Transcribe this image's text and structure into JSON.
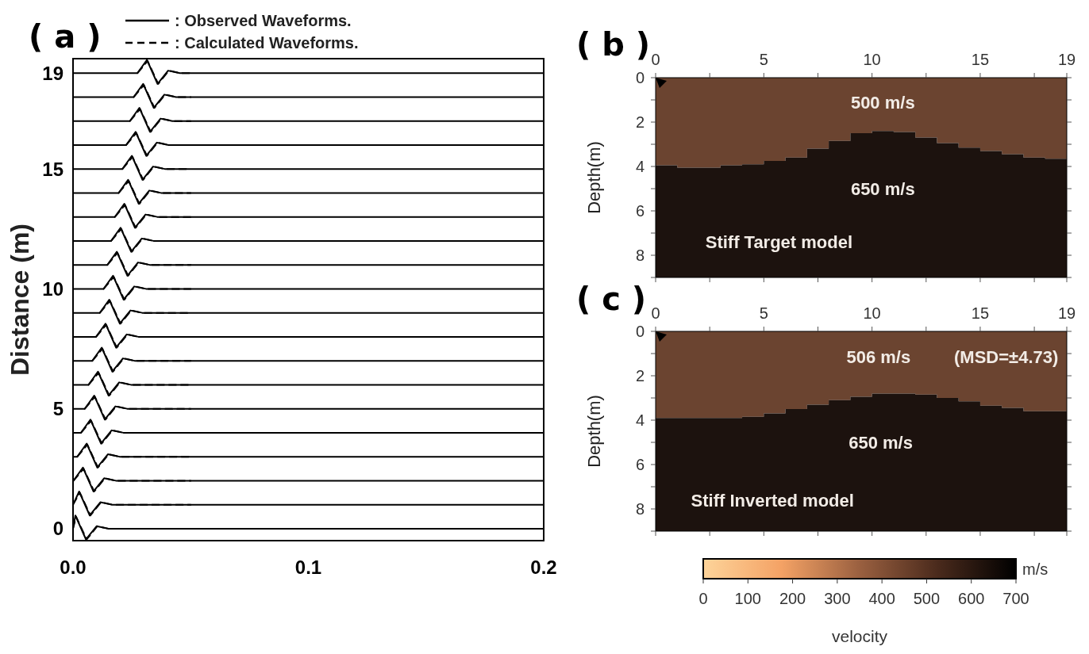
{
  "chart_data": [
    {
      "type": "line",
      "title": "( a )",
      "ylabel": "Distance (m)",
      "xlim": [
        0,
        0.2
      ],
      "xticks": [
        {
          "value": 0,
          "label": "0.0"
        },
        0.1,
        0.2
      ],
      "ylim": [
        -0.5,
        19.6
      ],
      "yticks": [
        0,
        5,
        10,
        15,
        19
      ],
      "legend": "top",
      "series": [
        {
          "name": ": Observed Waveforms.",
          "color": "#000000",
          "line_style": "solid",
          "x": [
            0,
            0.001,
            0.0055,
            0.01,
            0.015,
            0.07,
            0.2
          ],
          "values": [
            0,
            0.55,
            -0.45,
            0.1,
            0,
            0,
            0
          ]
        },
        {
          "name": ": Calculated Waveforms.",
          "color": "#000000",
          "line_style": "dashed",
          "x": [
            0,
            0.0013,
            0.0058,
            0.0103,
            0.015,
            0.05
          ],
          "values": [
            0,
            0.5,
            -0.45,
            0.1,
            0,
            0
          ]
        },
        {
          "color": "#000000",
          "line_style": "solid",
          "x": [
            0,
            0.0026,
            0.0071,
            0.0116,
            0.0166,
            0.07,
            0.2
          ],
          "values": [
            1,
            1.55,
            0.55,
            1.1,
            1,
            1,
            1
          ]
        },
        {
          "color": "#000000",
          "line_style": "dashed",
          "x": [
            0,
            0.0029,
            0.0074,
            0.0119,
            0.0166,
            0.05
          ],
          "values": [
            1,
            1.5,
            0.55,
            1.1,
            1,
            1
          ]
        },
        {
          "color": "#000000",
          "line_style": "solid",
          "x": [
            0,
            0.0002,
            0.0042,
            0.0087,
            0.0132,
            0.0182,
            0.07,
            0.2
          ],
          "values": [
            2,
            2,
            2.55,
            1.55,
            2.1,
            2,
            2,
            2
          ]
        },
        {
          "color": "#000000",
          "line_style": "dashed",
          "x": [
            0.0002,
            0.0045,
            0.009,
            0.0135,
            0.0182,
            0.05
          ],
          "values": [
            2,
            2.5,
            1.55,
            2.1,
            2,
            2
          ]
        },
        {
          "color": "#000000",
          "line_style": "solid",
          "x": [
            0,
            0.0018,
            0.0058,
            0.0103,
            0.0148,
            0.0198,
            0.07,
            0.2
          ],
          "values": [
            3,
            3,
            3.55,
            2.55,
            3.1,
            3,
            3,
            3
          ]
        },
        {
          "color": "#000000",
          "line_style": "dashed",
          "x": [
            0.0018,
            0.0061,
            0.0106,
            0.0151,
            0.0198,
            0.05
          ],
          "values": [
            3,
            3.5,
            2.55,
            3.1,
            3,
            3
          ]
        },
        {
          "color": "#000000",
          "line_style": "solid",
          "x": [
            0,
            0.0034,
            0.0074,
            0.0119,
            0.0164,
            0.0214,
            0.07,
            0.2
          ],
          "values": [
            4,
            4,
            4.55,
            3.55,
            4.1,
            4,
            4,
            4
          ]
        },
        {
          "color": "#000000",
          "line_style": "dashed",
          "x": [
            0.0034,
            0.0077,
            0.0122,
            0.0167,
            0.0214,
            0.05
          ],
          "values": [
            4,
            4.5,
            3.55,
            4.1,
            4,
            4
          ]
        },
        {
          "color": "#000000",
          "line_style": "solid",
          "x": [
            0,
            0.005,
            0.009,
            0.0135,
            0.018,
            0.023,
            0.07,
            0.2
          ],
          "values": [
            5,
            5,
            5.55,
            4.55,
            5.1,
            5,
            5,
            5
          ]
        },
        {
          "color": "#000000",
          "line_style": "dashed",
          "x": [
            0.005,
            0.0093,
            0.0138,
            0.0183,
            0.023,
            0.05
          ],
          "values": [
            5,
            5.5,
            4.55,
            5.1,
            5,
            5
          ]
        },
        {
          "color": "#000000",
          "line_style": "solid",
          "x": [
            0,
            0.0066,
            0.0106,
            0.0151,
            0.0196,
            0.0246,
            0.07,
            0.2
          ],
          "values": [
            6,
            6,
            6.55,
            5.55,
            6.1,
            6,
            6,
            6
          ]
        },
        {
          "color": "#000000",
          "line_style": "dashed",
          "x": [
            0.0066,
            0.0109,
            0.0154,
            0.0199,
            0.0246,
            0.05
          ],
          "values": [
            6,
            6.5,
            5.55,
            6.1,
            6,
            6
          ]
        },
        {
          "color": "#000000",
          "line_style": "solid",
          "x": [
            0,
            0.0082,
            0.0122,
            0.0167,
            0.0212,
            0.0262,
            0.07,
            0.2
          ],
          "values": [
            7,
            7,
            7.55,
            6.55,
            7.1,
            7,
            7,
            7
          ]
        },
        {
          "color": "#000000",
          "line_style": "dashed",
          "x": [
            0.0082,
            0.0125,
            0.017,
            0.0215,
            0.0262,
            0.05
          ],
          "values": [
            7,
            7.5,
            6.55,
            7.1,
            7,
            7
          ]
        },
        {
          "color": "#000000",
          "line_style": "solid",
          "x": [
            0,
            0.0098,
            0.0138,
            0.0183,
            0.0228,
            0.0278,
            0.07,
            0.2
          ],
          "values": [
            8,
            8,
            8.55,
            7.55,
            8.1,
            8,
            8,
            8
          ]
        },
        {
          "color": "#000000",
          "line_style": "dashed",
          "x": [
            0.0098,
            0.0141,
            0.0186,
            0.0231,
            0.0278,
            0.05
          ],
          "values": [
            8,
            8.5,
            7.55,
            8.1,
            8,
            8
          ]
        },
        {
          "color": "#000000",
          "line_style": "solid",
          "x": [
            0,
            0.0114,
            0.0154,
            0.0199,
            0.0244,
            0.0294,
            0.07,
            0.2
          ],
          "values": [
            9,
            9,
            9.55,
            8.55,
            9.1,
            9,
            9,
            9
          ]
        },
        {
          "color": "#000000",
          "line_style": "dashed",
          "x": [
            0.0114,
            0.0157,
            0.0202,
            0.0247,
            0.0294,
            0.05
          ],
          "values": [
            9,
            9.5,
            8.55,
            9.1,
            9,
            9
          ]
        },
        {
          "color": "#000000",
          "line_style": "solid",
          "x": [
            0,
            0.013,
            0.017,
            0.0215,
            0.026,
            0.031,
            0.07,
            0.2
          ],
          "values": [
            10,
            10,
            10.55,
            9.55,
            10.1,
            10,
            10,
            10
          ]
        },
        {
          "color": "#000000",
          "line_style": "dashed",
          "x": [
            0.013,
            0.0173,
            0.0218,
            0.0263,
            0.031,
            0.05
          ],
          "values": [
            10,
            10.5,
            9.55,
            10.1,
            10,
            10
          ]
        },
        {
          "color": "#000000",
          "line_style": "solid",
          "x": [
            0,
            0.0146,
            0.0186,
            0.0231,
            0.0276,
            0.0326,
            0.07,
            0.2
          ],
          "values": [
            11,
            11,
            11.55,
            10.55,
            11.1,
            11,
            11,
            11
          ]
        },
        {
          "color": "#000000",
          "line_style": "dashed",
          "x": [
            0.0146,
            0.0189,
            0.0234,
            0.0279,
            0.0326,
            0.05
          ],
          "values": [
            11,
            11.5,
            10.55,
            11.1,
            11,
            11
          ]
        },
        {
          "color": "#000000",
          "line_style": "solid",
          "x": [
            0,
            0.0162,
            0.0202,
            0.0247,
            0.0292,
            0.0342,
            0.07,
            0.2
          ],
          "values": [
            12,
            12,
            12.55,
            11.55,
            12.1,
            12,
            12,
            12
          ]
        },
        {
          "color": "#000000",
          "line_style": "dashed",
          "x": [
            0.0162,
            0.0205,
            0.025,
            0.0295,
            0.0342,
            0.05
          ],
          "values": [
            12,
            12.5,
            11.55,
            12.1,
            12,
            12
          ]
        },
        {
          "color": "#000000",
          "line_style": "solid",
          "x": [
            0,
            0.0178,
            0.0218,
            0.0263,
            0.0308,
            0.0358,
            0.07,
            0.2
          ],
          "values": [
            13,
            13,
            13.55,
            12.55,
            13.1,
            13,
            13,
            13
          ]
        },
        {
          "color": "#000000",
          "line_style": "dashed",
          "x": [
            0.0178,
            0.0221,
            0.0266,
            0.0311,
            0.0358,
            0.05
          ],
          "values": [
            13,
            13.5,
            12.55,
            13.1,
            13,
            13
          ]
        },
        {
          "color": "#000000",
          "line_style": "solid",
          "x": [
            0,
            0.0194,
            0.0234,
            0.0279,
            0.0324,
            0.0374,
            0.07,
            0.2
          ],
          "values": [
            14,
            14,
            14.55,
            13.55,
            14.1,
            14,
            14,
            14
          ]
        },
        {
          "color": "#000000",
          "line_style": "dashed",
          "x": [
            0.0194,
            0.0237,
            0.0282,
            0.0327,
            0.0374,
            0.05
          ],
          "values": [
            14,
            14.5,
            13.55,
            14.1,
            14,
            14
          ]
        },
        {
          "color": "#000000",
          "line_style": "solid",
          "x": [
            0,
            0.021,
            0.025,
            0.0295,
            0.034,
            0.039,
            0.07,
            0.2
          ],
          "values": [
            15,
            15,
            15.55,
            14.55,
            15.1,
            15,
            15,
            15
          ]
        },
        {
          "color": "#000000",
          "line_style": "dashed",
          "x": [
            0.021,
            0.0253,
            0.0298,
            0.0343,
            0.039,
            0.05
          ],
          "values": [
            15,
            15.5,
            14.55,
            15.1,
            15,
            15
          ]
        },
        {
          "color": "#000000",
          "line_style": "solid",
          "x": [
            0,
            0.0226,
            0.0266,
            0.0311,
            0.0356,
            0.0406,
            0.07,
            0.2
          ],
          "values": [
            16,
            16,
            16.55,
            15.55,
            16.1,
            16,
            16,
            16
          ]
        },
        {
          "color": "#000000",
          "line_style": "dashed",
          "x": [
            0.0226,
            0.0269,
            0.0314,
            0.0359,
            0.0406,
            0.05
          ],
          "values": [
            16,
            16.5,
            15.55,
            16.1,
            16,
            16
          ]
        },
        {
          "color": "#000000",
          "line_style": "solid",
          "x": [
            0,
            0.0242,
            0.0282,
            0.0327,
            0.0372,
            0.0422,
            0.07,
            0.2
          ],
          "values": [
            17,
            17,
            17.55,
            16.55,
            17.1,
            17,
            17,
            17
          ]
        },
        {
          "color": "#000000",
          "line_style": "dashed",
          "x": [
            0.0242,
            0.0285,
            0.033,
            0.0375,
            0.0422,
            0.05
          ],
          "values": [
            17,
            17.5,
            16.55,
            17.1,
            17,
            17
          ]
        },
        {
          "color": "#000000",
          "line_style": "solid",
          "x": [
            0,
            0.0258,
            0.0298,
            0.0343,
            0.0388,
            0.0438,
            0.07,
            0.2
          ],
          "values": [
            18,
            18,
            18.55,
            17.55,
            18.1,
            18,
            18,
            18
          ]
        },
        {
          "color": "#000000",
          "line_style": "dashed",
          "x": [
            0.0258,
            0.0301,
            0.0346,
            0.0391,
            0.0438,
            0.05
          ],
          "values": [
            18,
            18.5,
            17.55,
            18.1,
            18,
            18
          ]
        },
        {
          "color": "#000000",
          "line_style": "solid",
          "x": [
            0,
            0.0274,
            0.0314,
            0.0359,
            0.0404,
            0.0454,
            0.07,
            0.2
          ],
          "values": [
            19,
            19,
            19.55,
            18.55,
            19.1,
            19,
            19,
            19
          ]
        },
        {
          "color": "#000000",
          "line_style": "dashed",
          "x": [
            0.0274,
            0.0317,
            0.0362,
            0.0407,
            0.0454,
            0.05
          ],
          "values": [
            19,
            19.5,
            18.55,
            19.1,
            19,
            19
          ]
        }
      ]
    },
    {
      "type": "area",
      "stacked": true,
      "title": "( b )",
      "ylabel": "Depth(m)",
      "x": [
        0,
        1,
        2,
        3,
        4,
        5,
        6,
        7,
        8,
        9,
        10,
        11,
        12,
        13,
        14,
        15,
        16,
        17,
        18,
        19
      ],
      "xlim": [
        0,
        19
      ],
      "xticks": [
        0,
        {
          "value": 2.5,
          "label": null
        },
        5,
        {
          "value": 7.5,
          "label": null
        },
        10,
        {
          "value": 12.5,
          "label": null
        },
        15,
        {
          "value": 17.5,
          "label": null
        },
        19
      ],
      "ylim": [
        9,
        0
      ],
      "yticks": [
        0,
        {
          "value": 1,
          "label": null
        },
        2,
        {
          "value": 3,
          "label": null
        },
        4,
        {
          "value": 5,
          "label": null
        },
        6,
        {
          "value": 7,
          "label": null
        },
        8,
        {
          "value": 9,
          "label": null
        }
      ],
      "series": [
        {
          "color": "#6b4430",
          "values": [
            3.95,
            4.05,
            4.05,
            3.95,
            3.9,
            3.75,
            3.6,
            3.2,
            2.85,
            2.5,
            2.4,
            2.45,
            2.7,
            2.95,
            3.15,
            3.3,
            3.45,
            3.6,
            3.65,
            3.65
          ]
        },
        {
          "color": "#1c120e",
          "values": [
            5.05,
            4.95,
            4.95,
            5.05,
            5.1,
            5.25,
            5.4,
            5.8,
            6.15,
            6.5,
            6.6,
            6.55,
            6.3,
            6.05,
            5.85,
            5.7,
            5.55,
            5.4,
            5.35,
            5.35
          ]
        }
      ],
      "annotations": [
        "500 m/s",
        "650 m/s",
        "Stiff Target model"
      ]
    },
    {
      "type": "area",
      "stacked": true,
      "title": "( c )",
      "ylabel": "Depth(m)",
      "x": [
        0,
        1,
        2,
        3,
        4,
        5,
        6,
        7,
        8,
        9,
        10,
        11,
        12,
        13,
        14,
        15,
        16,
        17,
        18,
        19
      ],
      "xlim": [
        0,
        19
      ],
      "xticks": [
        0,
        {
          "value": 2.5,
          "label": null
        },
        5,
        {
          "value": 7.5,
          "label": null
        },
        10,
        {
          "value": 12.5,
          "label": null
        },
        15,
        {
          "value": 17.5,
          "label": null
        },
        19
      ],
      "ylim": [
        9,
        0
      ],
      "yticks": [
        0,
        {
          "value": 1,
          "label": null
        },
        2,
        {
          "value": 3,
          "label": null
        },
        4,
        {
          "value": 5,
          "label": null
        },
        6,
        {
          "value": 7,
          "label": null
        },
        8,
        {
          "value": 9,
          "label": null
        }
      ],
      "series": [
        {
          "color": "#6b4430",
          "values": [
            3.9,
            3.9,
            3.9,
            3.9,
            3.85,
            3.7,
            3.5,
            3.3,
            3.1,
            2.95,
            2.8,
            2.8,
            2.85,
            3,
            3.15,
            3.35,
            3.45,
            3.6,
            3.6,
            3.6
          ]
        },
        {
          "color": "#1c120e",
          "values": [
            5.1,
            5.1,
            5.1,
            5.1,
            5.15,
            5.3,
            5.5,
            5.7,
            5.9,
            6.05,
            6.2,
            6.2,
            6.15,
            6,
            5.85,
            5.65,
            5.55,
            5.4,
            5.4,
            5.4
          ]
        }
      ],
      "annotations": [
        "506 m/s",
        "(MSD=±4.73)",
        "650 m/s",
        "Stiff Inverted model",
        "m/s"
      ],
      "clabel": "velocity",
      "clim": [
        0,
        700
      ],
      "cticks": [
        0,
        100,
        200,
        300,
        400,
        500,
        600,
        700
      ]
    }
  ]
}
